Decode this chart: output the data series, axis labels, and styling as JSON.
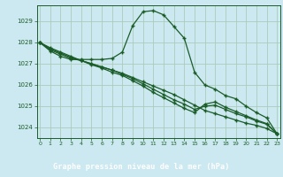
{
  "title": "Graphe pression niveau de la mer (hPa)",
  "bg_color": "#cce8e0",
  "plot_bg_color": "#cce8f0",
  "grid_color": "#aaccbb",
  "line_color": "#1a5c28",
  "title_bg_color": "#2d6b2a",
  "title_fg_color": "#ffffff",
  "ylim": [
    1023.5,
    1029.75
  ],
  "xlim": [
    -0.3,
    23.3
  ],
  "yticks": [
    1024,
    1025,
    1026,
    1027,
    1028,
    1029
  ],
  "xticks": [
    0,
    1,
    2,
    3,
    4,
    5,
    6,
    7,
    8,
    9,
    10,
    11,
    12,
    13,
    14,
    15,
    16,
    17,
    18,
    19,
    20,
    21,
    22,
    23
  ],
  "series": [
    [
      1028.0,
      1027.75,
      1027.55,
      1027.35,
      1027.15,
      1027.0,
      1026.85,
      1026.7,
      1026.55,
      1026.35,
      1026.15,
      1025.95,
      1025.75,
      1025.55,
      1025.3,
      1025.05,
      1024.8,
      1024.65,
      1024.5,
      1024.35,
      1024.2,
      1024.1,
      1023.95,
      1023.7
    ],
    [
      1028.0,
      1027.7,
      1027.5,
      1027.3,
      1027.15,
      1027.0,
      1026.85,
      1026.7,
      1026.5,
      1026.3,
      1026.05,
      1025.8,
      1025.55,
      1025.3,
      1025.1,
      1024.85,
      1025.0,
      1025.05,
      1024.85,
      1024.65,
      1024.5,
      1024.3,
      1024.15,
      1023.7
    ],
    [
      1028.0,
      1027.65,
      1027.45,
      1027.25,
      1027.15,
      1026.95,
      1026.8,
      1026.6,
      1026.45,
      1026.2,
      1025.95,
      1025.65,
      1025.4,
      1025.15,
      1024.9,
      1024.7,
      1025.1,
      1025.2,
      1024.95,
      1024.75,
      1024.55,
      1024.35,
      1024.18,
      1023.7
    ],
    [
      1028.0,
      1027.6,
      1027.35,
      1027.2,
      1027.2,
      1027.2,
      1027.2,
      1027.25,
      1027.55,
      1028.8,
      1029.45,
      1029.5,
      1029.3,
      1028.75,
      1028.2,
      1026.6,
      1026.0,
      1025.8,
      1025.5,
      1025.35,
      1025.0,
      1024.7,
      1024.45,
      1023.7
    ]
  ]
}
